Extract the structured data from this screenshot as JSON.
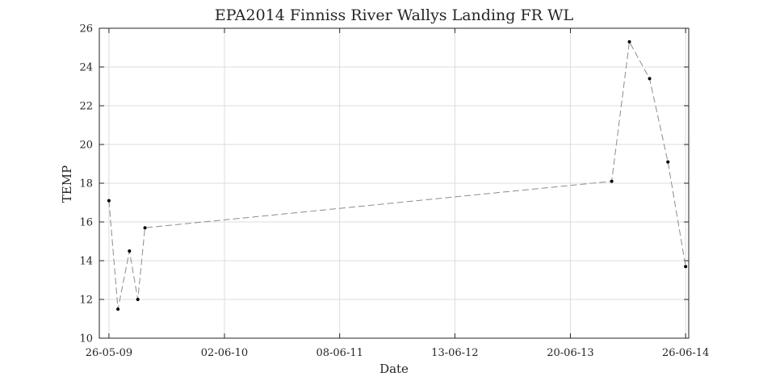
{
  "chart_data": {
    "type": "line",
    "title": "EPA2014 Finniss River Wallys Landing FR WL",
    "xlabel": "Date",
    "ylabel": "TEMP",
    "x_axis_type": "date",
    "xlim": [
      "2009-04-25",
      "2014-07-06"
    ],
    "ylim": [
      10,
      26
    ],
    "x_ticks": [
      {
        "date": "2009-05-26",
        "label": "26-05-09"
      },
      {
        "date": "2010-06-02",
        "label": "02-06-10"
      },
      {
        "date": "2011-06-08",
        "label": "08-06-11"
      },
      {
        "date": "2012-06-13",
        "label": "13-06-12"
      },
      {
        "date": "2013-06-20",
        "label": "20-06-13"
      },
      {
        "date": "2014-06-26",
        "label": "26-06-14"
      }
    ],
    "y_ticks": [
      10,
      12,
      14,
      16,
      18,
      20,
      22,
      24,
      26
    ],
    "grid": true,
    "legend": "none",
    "line_style": "dashed",
    "line_color": "#8c8c8c",
    "marker_color": "#000000",
    "series": [
      {
        "points": [
          {
            "x": "2009-05-26",
            "y": 17.1
          },
          {
            "x": "2009-06-24",
            "y": 11.5
          },
          {
            "x": "2009-07-31",
            "y": 14.5
          },
          {
            "x": "2009-08-27",
            "y": 12.0
          },
          {
            "x": "2009-09-19",
            "y": 15.7
          },
          {
            "x": "2013-10-31",
            "y": 18.1
          },
          {
            "x": "2013-12-27",
            "y": 25.3
          },
          {
            "x": "2014-03-02",
            "y": 23.4
          },
          {
            "x": "2014-04-30",
            "y": 19.1
          },
          {
            "x": "2014-06-26",
            "y": 13.7
          }
        ]
      }
    ]
  }
}
